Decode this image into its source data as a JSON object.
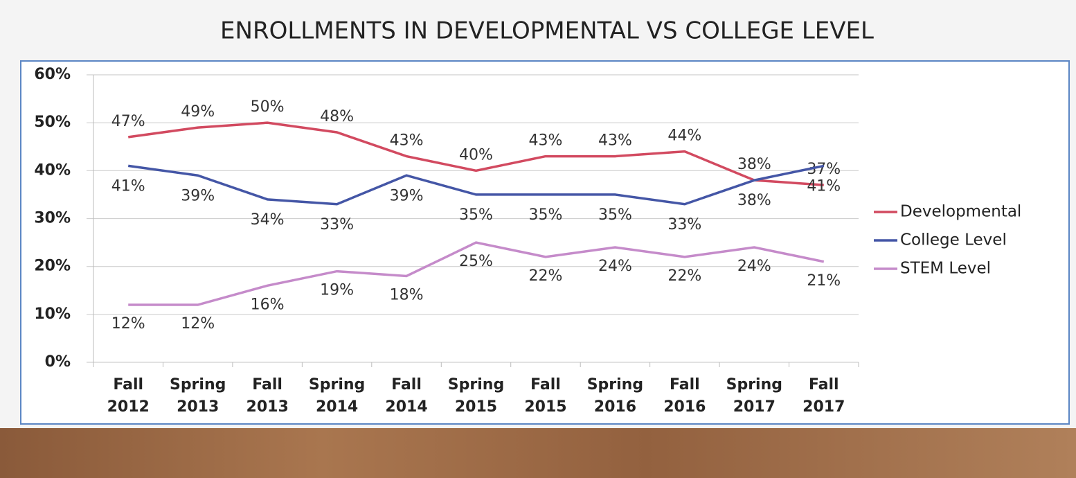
{
  "chart_data": {
    "type": "line",
    "title": "ENROLLMENTS IN DEVELOPMENTAL VS COLLEGE LEVEL",
    "categories": [
      "Fall 2012",
      "Spring 2013",
      "Fall 2013",
      "Spring 2014",
      "Fall 2014",
      "Spring 2015",
      "Fall 2015",
      "Spring 2016",
      "Fall 2016",
      "Spring 2017",
      "Fall 2017"
    ],
    "series": [
      {
        "name": "Developmental",
        "color": "#d24a60",
        "values": [
          47,
          49,
          50,
          48,
          43,
          40,
          43,
          43,
          44,
          38,
          37
        ],
        "value_labels": [
          "47%",
          "49%",
          "50%",
          "48%",
          "43%",
          "40%",
          "43%",
          "43%",
          "44%",
          "38%",
          "37%"
        ]
      },
      {
        "name": "College Level",
        "color": "#4456a6",
        "values": [
          41,
          39,
          34,
          33,
          39,
          35,
          35,
          35,
          33,
          38,
          41
        ],
        "value_labels": [
          "41%",
          "39%",
          "34%",
          "33%",
          "39%",
          "35%",
          "35%",
          "35%",
          "33%",
          "38%",
          "41%"
        ]
      },
      {
        "name": "STEM Level",
        "color": "#c58bca",
        "values": [
          12,
          12,
          16,
          19,
          18,
          25,
          22,
          24,
          22,
          24,
          21
        ],
        "value_labels": [
          "12%",
          "12%",
          "16%",
          "19%",
          "18%",
          "25%",
          "22%",
          "24%",
          "22%",
          "24%",
          "21%"
        ]
      }
    ],
    "ylim": [
      0,
      60
    ],
    "yticks": [
      {
        "value": 0,
        "label": "0%"
      },
      {
        "value": 10,
        "label": "10%"
      },
      {
        "value": 20,
        "label": "20%"
      },
      {
        "value": 30,
        "label": "30%"
      },
      {
        "value": 40,
        "label": "40%"
      },
      {
        "value": 50,
        "label": "50%"
      },
      {
        "value": 60,
        "label": "60%"
      }
    ],
    "grid": true,
    "legend": "right"
  }
}
